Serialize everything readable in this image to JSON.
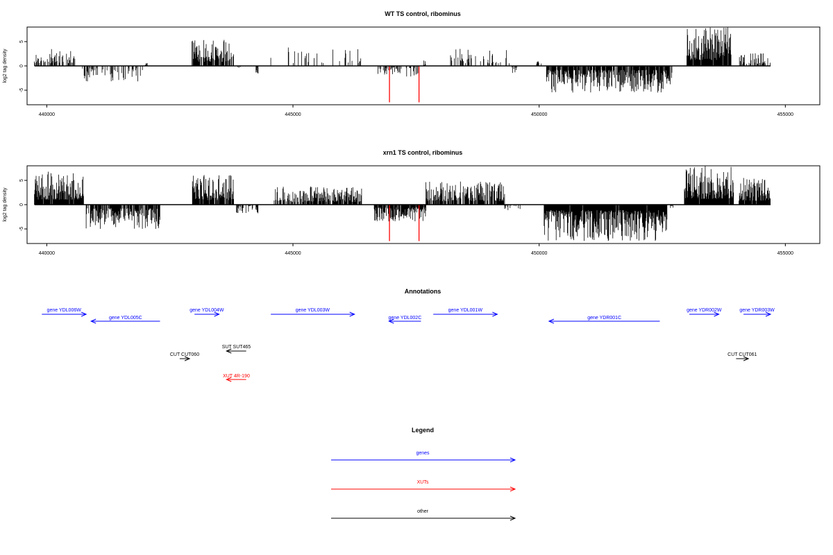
{
  "chart_data": [
    {
      "type": "bar",
      "title": "WT TS control, ribominus",
      "ylabel": "log2 tag density",
      "xlim": [
        439600,
        455700
      ],
      "ylim": [
        -8,
        8
      ],
      "xticks": [
        440000,
        445000,
        450000,
        455000
      ],
      "xtick_labels": [
        "440000",
        "445000",
        "450000",
        "455000"
      ],
      "yticks": [
        -5,
        0,
        5
      ],
      "ytick_labels": [
        "-5",
        "0",
        "5"
      ],
      "baseline": [
        439750,
        454700
      ],
      "segments": [
        {
          "x": [
            439750,
            440600
          ],
          "sign": 1,
          "max": 3.5,
          "density": 0.45
        },
        {
          "x": [
            440700,
            441950
          ],
          "sign": -1,
          "max": 3.2,
          "density": 0.35
        },
        {
          "x": [
            442000,
            442050
          ],
          "sign": 1,
          "max": 0.8,
          "density": 1
        },
        {
          "x": [
            442950,
            443800
          ],
          "sign": 1,
          "max": 5.5,
          "density": 0.85
        },
        {
          "x": [
            443850,
            443950
          ],
          "sign": -1,
          "max": 1.0,
          "density": 0.5
        },
        {
          "x": [
            444250,
            444300
          ],
          "sign": -1,
          "max": 1.8,
          "density": 1
        },
        {
          "x": [
            444550,
            446400
          ],
          "sign": 1,
          "max": 3.8,
          "density": 0.18
        },
        {
          "x": [
            446700,
            447200
          ],
          "sign": -1,
          "max": 1.8,
          "density": 0.35
        },
        {
          "x": [
            447300,
            447600
          ],
          "sign": -1,
          "max": 2.5,
          "density": 0.45
        },
        {
          "x": [
            447650,
            447700
          ],
          "sign": 1,
          "max": 1.2,
          "density": 1
        },
        {
          "x": [
            448200,
            449400
          ],
          "sign": 1,
          "max": 3.5,
          "density": 0.25
        },
        {
          "x": [
            449450,
            449550
          ],
          "sign": -1,
          "max": 1.5,
          "density": 0.5
        },
        {
          "x": [
            449950,
            450050
          ],
          "sign": 1,
          "max": 1.0,
          "density": 0.5
        },
        {
          "x": [
            450150,
            452700
          ],
          "sign": -1,
          "max": 5.5,
          "density": 0.85
        },
        {
          "x": [
            453000,
            453900
          ],
          "sign": 1,
          "max": 8.0,
          "density": 0.95
        },
        {
          "x": [
            454050,
            454700
          ],
          "sign": 1,
          "max": 2.8,
          "density": 0.45
        }
      ],
      "highlights": [
        {
          "x": 446960,
          "y": -7.5,
          "color": "#ff0000"
        },
        {
          "x": 447560,
          "y": -7.5,
          "color": "#ff0000"
        }
      ]
    },
    {
      "type": "bar",
      "title": "xrn1 TS control, ribominus",
      "ylabel": "log2 tag density",
      "xlim": [
        439600,
        455700
      ],
      "ylim": [
        -8,
        8
      ],
      "xticks": [
        440000,
        445000,
        450000,
        455000
      ],
      "xtick_labels": [
        "440000",
        "445000",
        "450000",
        "455000"
      ],
      "yticks": [
        -5,
        0,
        5
      ],
      "ytick_labels": [
        "-5",
        "0",
        "5"
      ],
      "baseline": [
        439750,
        454700
      ],
      "segments": [
        {
          "x": [
            439750,
            440750
          ],
          "sign": 1,
          "max": 6.8,
          "density": 0.95
        },
        {
          "x": [
            440800,
            442300
          ],
          "sign": -1,
          "max": 5.0,
          "density": 0.8
        },
        {
          "x": [
            442950,
            443800
          ],
          "sign": 1,
          "max": 6.2,
          "density": 0.85
        },
        {
          "x": [
            443850,
            444300
          ],
          "sign": -1,
          "max": 2.0,
          "density": 0.4
        },
        {
          "x": [
            444600,
            446400
          ],
          "sign": 1,
          "max": 3.8,
          "density": 0.75
        },
        {
          "x": [
            446650,
            447700
          ],
          "sign": -1,
          "max": 3.5,
          "density": 0.85
        },
        {
          "x": [
            447700,
            449300
          ],
          "sign": 1,
          "max": 4.8,
          "density": 0.75
        },
        {
          "x": [
            449300,
            449650
          ],
          "sign": -1,
          "max": 1.2,
          "density": 0.4
        },
        {
          "x": [
            450100,
            452600
          ],
          "sign": -1,
          "max": 7.5,
          "density": 0.98
        },
        {
          "x": [
            452650,
            452750
          ],
          "sign": -1,
          "max": 1.0,
          "density": 0.5
        },
        {
          "x": [
            452950,
            453950
          ],
          "sign": 1,
          "max": 8.0,
          "density": 0.98
        },
        {
          "x": [
            454050,
            454700
          ],
          "sign": 1,
          "max": 5.5,
          "density": 0.9
        }
      ],
      "highlights": [
        {
          "x": 446960,
          "y": -7.5,
          "color": "#ff0000"
        },
        {
          "x": 447560,
          "y": -7.5,
          "color": "#ff0000"
        }
      ]
    }
  ],
  "annotations": {
    "title": "Annotations",
    "features": [
      {
        "label": "gene YDL006W",
        "start": 439900,
        "end": 440800,
        "strand": "+",
        "row": 0,
        "color": "#0000ff"
      },
      {
        "label": "gene YDL005C",
        "start": 440900,
        "end": 442300,
        "strand": "-",
        "row": 1,
        "color": "#0000ff"
      },
      {
        "label": "gene YDL004W",
        "start": 443000,
        "end": 443500,
        "strand": "+",
        "row": 0,
        "color": "#0000ff"
      },
      {
        "label": "gene YDL003W",
        "start": 444550,
        "end": 446250,
        "strand": "+",
        "row": 0,
        "color": "#0000ff"
      },
      {
        "label": "gene YDL002C",
        "start": 446950,
        "end": 447600,
        "strand": "-",
        "row": 1,
        "color": "#0000ff"
      },
      {
        "label": "gene YDL001W",
        "start": 447850,
        "end": 449150,
        "strand": "+",
        "row": 0,
        "color": "#0000ff"
      },
      {
        "label": "gene YDR001C",
        "start": 450200,
        "end": 452450,
        "strand": "-",
        "row": 1,
        "color": "#0000ff"
      },
      {
        "label": "gene YDR002W",
        "start": 453050,
        "end": 453650,
        "strand": "+",
        "row": 0,
        "color": "#0000ff"
      },
      {
        "label": "gene YDR003W",
        "start": 454150,
        "end": 454700,
        "strand": "+",
        "row": 0,
        "color": "#0000ff"
      },
      {
        "label": "SUT SUT465",
        "start": 443650,
        "end": 444050,
        "strand": "-",
        "row": 2,
        "color": "#000000"
      },
      {
        "label": "CUT CUT060",
        "start": 442700,
        "end": 442900,
        "strand": "+",
        "row": 3,
        "color": "#000000"
      },
      {
        "label": "CUT CUT061",
        "start": 454000,
        "end": 454250,
        "strand": "+",
        "row": 3,
        "color": "#000000"
      },
      {
        "label": "XUT 4R-190",
        "start": 443650,
        "end": 444050,
        "strand": "-",
        "row": 4,
        "color": "#ff0000"
      }
    ]
  },
  "legend": {
    "title": "Legend",
    "items": [
      {
        "label": "genes",
        "color": "#0000ff"
      },
      {
        "label": "XUTs",
        "color": "#ff0000"
      },
      {
        "label": "other",
        "color": "#000000"
      }
    ]
  }
}
